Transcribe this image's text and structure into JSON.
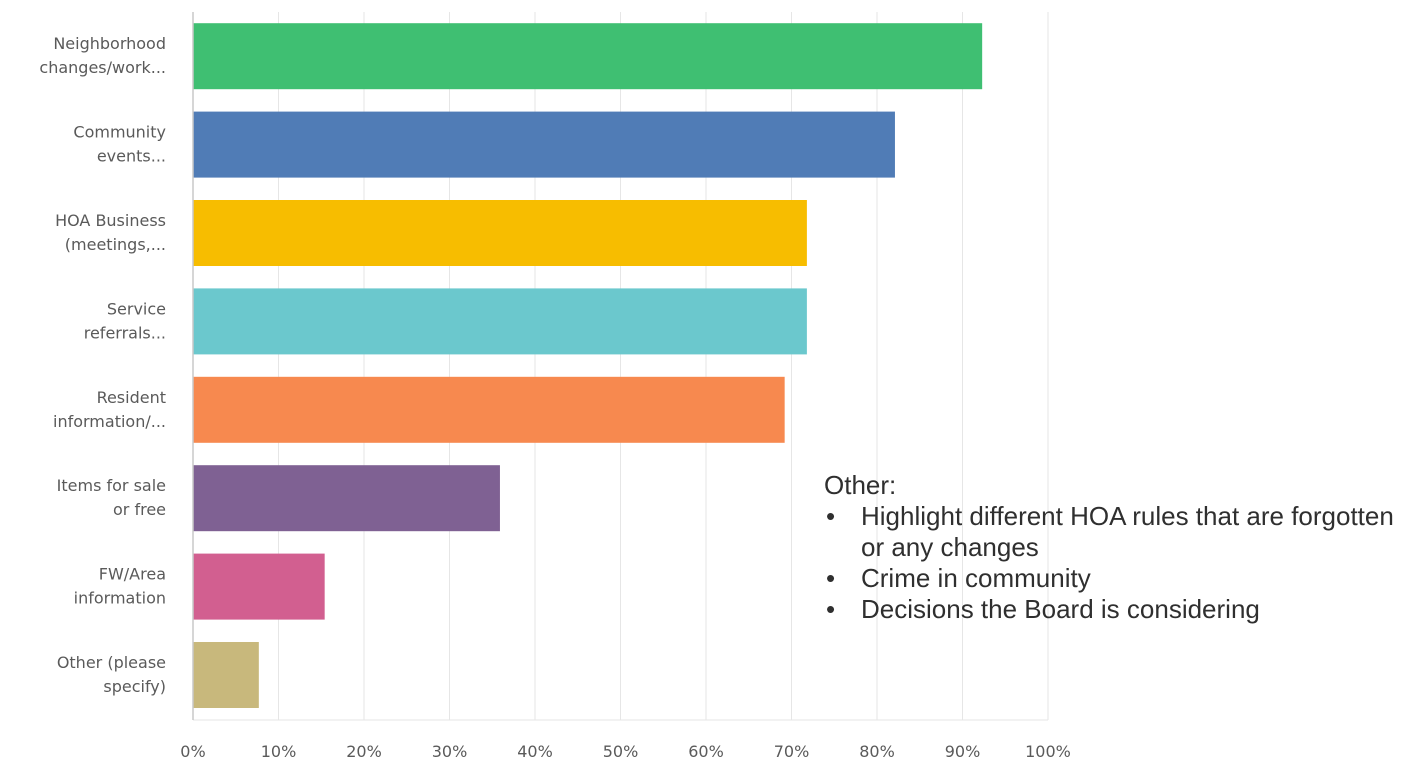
{
  "chart_data": {
    "type": "bar",
    "orientation": "horizontal",
    "categories": [
      [
        "Neighborhood",
        "changes/work..."
      ],
      [
        "Community",
        "events..."
      ],
      [
        "HOA Business",
        "(meetings,..."
      ],
      [
        "Service",
        "referrals..."
      ],
      [
        "Resident",
        "information/..."
      ],
      [
        "Items for sale",
        "or free"
      ],
      [
        "FW/Area",
        "information"
      ],
      [
        "Other (please",
        "specify)"
      ]
    ],
    "values": [
      92.3,
      82.1,
      71.8,
      71.8,
      69.2,
      35.9,
      15.4,
      7.7
    ],
    "colors": [
      "#3fbf72",
      "#507cb6",
      "#f7bd00",
      "#6bc8cd",
      "#f7894f",
      "#7f6193",
      "#d25f90",
      "#c8b87c"
    ],
    "xlim": [
      0,
      100
    ],
    "xticks": [
      "0%",
      "10%",
      "20%",
      "30%",
      "40%",
      "50%",
      "60%",
      "70%",
      "80%",
      "90%",
      "100%"
    ],
    "grid": true
  },
  "note": {
    "title": "Other:",
    "items": [
      "Highlight different HOA rules that are forgotten or any changes",
      "Crime in community",
      "Decisions the Board is considering"
    ]
  }
}
